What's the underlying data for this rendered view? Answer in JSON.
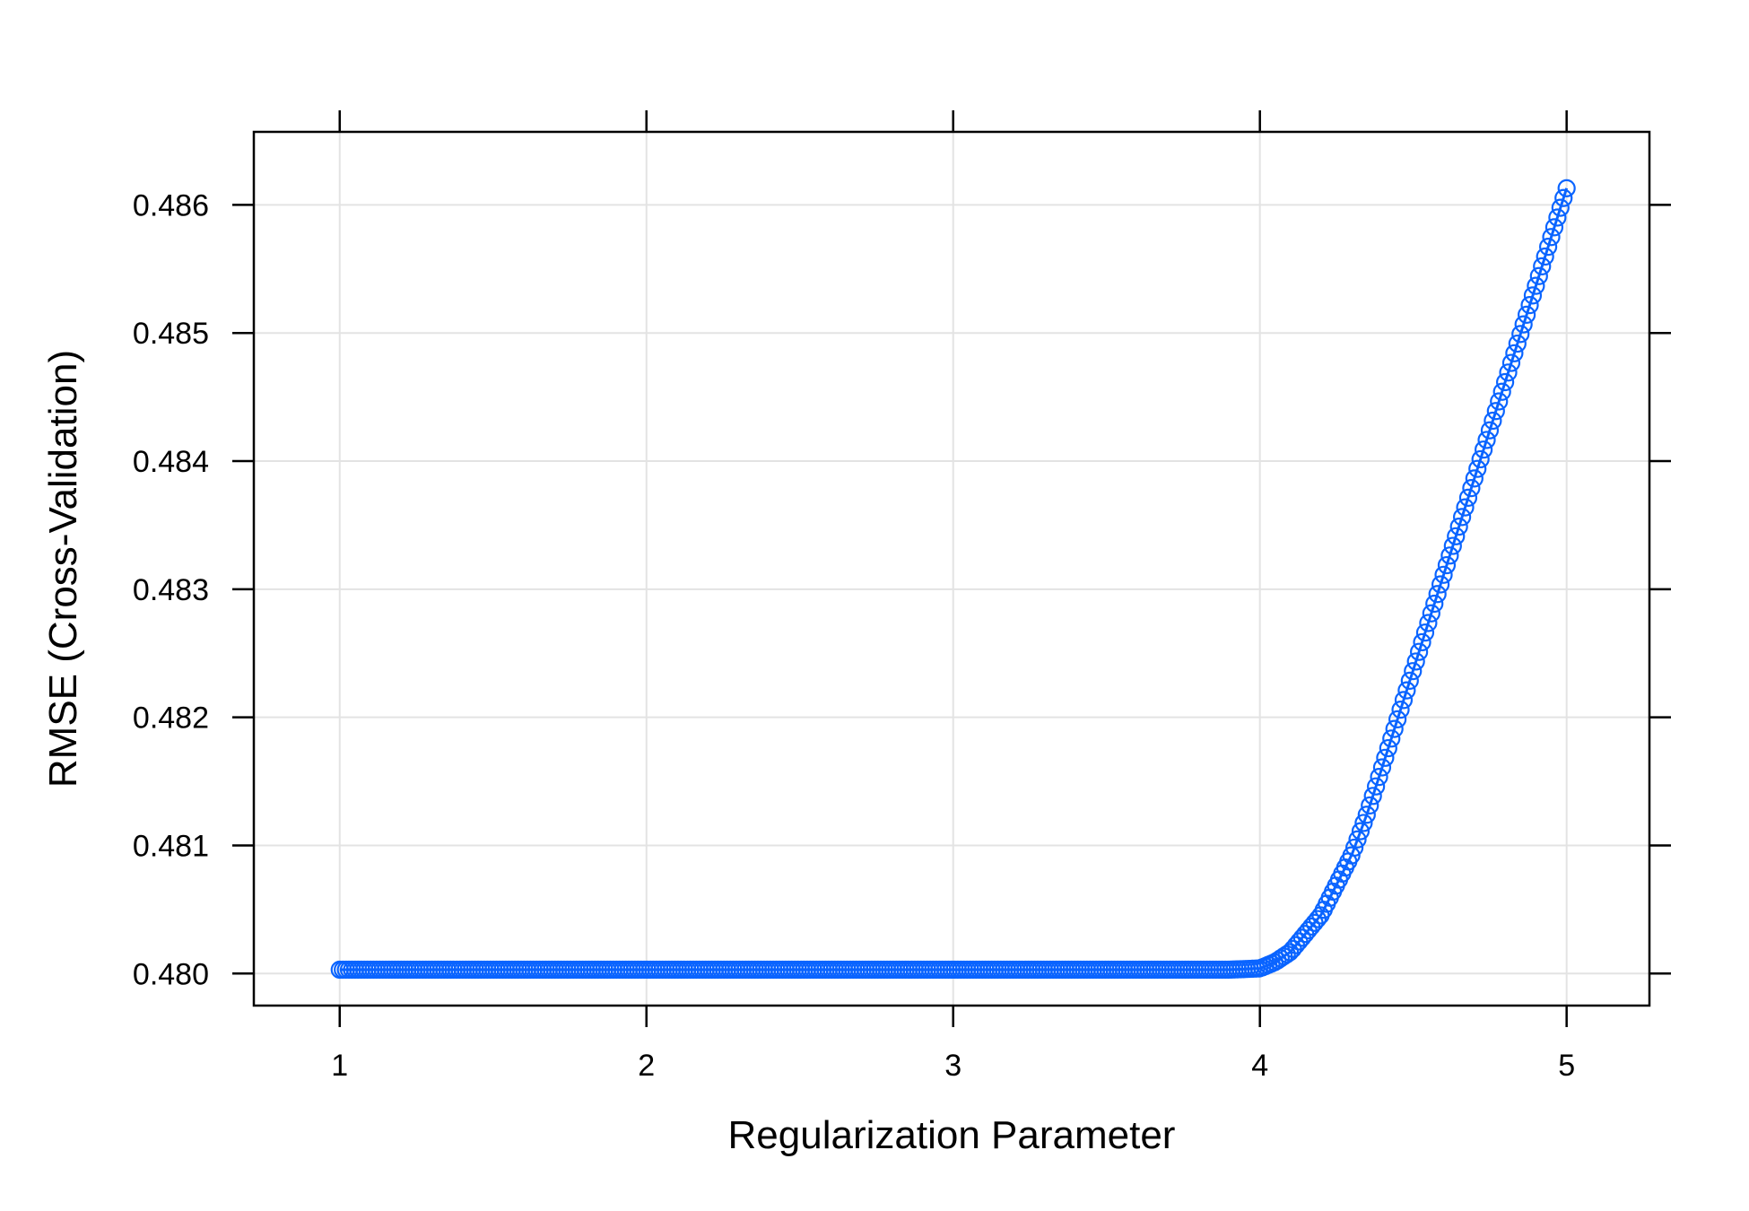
{
  "chart_data": {
    "type": "line",
    "xlabel": "Regularization Parameter",
    "ylabel": "RMSE (Cross-Validation)",
    "xlim": [
      0.72,
      5.27
    ],
    "ylim": [
      0.47975,
      0.48657
    ],
    "x_ticks": [
      1,
      2,
      3,
      4,
      5
    ],
    "y_ticks": [
      0.48,
      0.481,
      0.482,
      0.483,
      0.484,
      0.485,
      0.486
    ],
    "x_tick_labels": [
      "1",
      "2",
      "3",
      "4",
      "5"
    ],
    "y_tick_labels": [
      "0.480",
      "0.481",
      "0.482",
      "0.483",
      "0.484",
      "0.485",
      "0.486"
    ],
    "grid": true,
    "marker": "open-circle",
    "series": [
      {
        "color": "#0a64ff",
        "x": [
          1.0,
          1.5,
          2.0,
          2.5,
          3.0,
          3.5,
          3.9,
          4.0,
          4.05,
          4.1,
          4.2,
          4.3,
          4.35,
          4.4,
          4.5,
          4.6,
          4.7,
          4.8,
          4.9,
          5.0
        ],
        "y": [
          0.48003,
          0.48003,
          0.48003,
          0.48003,
          0.48003,
          0.48003,
          0.48003,
          0.48004,
          0.48009,
          0.48017,
          0.48046,
          0.48093,
          0.48125,
          0.48162,
          0.48237,
          0.48312,
          0.48387,
          0.48462,
          0.48537,
          0.48613
        ]
      }
    ]
  }
}
